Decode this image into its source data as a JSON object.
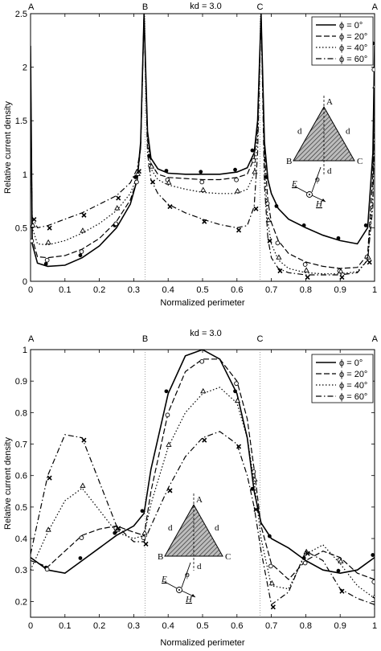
{
  "chart_data": [
    {
      "type": "line",
      "title": "kd = 3.0",
      "xlabel": "Normalized perimeter",
      "ylabel": "Relative current density",
      "xlim": [
        0,
        1
      ],
      "ylim": [
        0,
        2.5
      ],
      "xticks": [
        "0",
        "0.1",
        "0.2",
        "0.3",
        "0.4",
        "0.5",
        "0.6",
        "0.7",
        "0.8",
        "0.9",
        "1"
      ],
      "yticks": [
        "0",
        "0.5",
        "1",
        "1.5",
        "2",
        "2.5"
      ],
      "corner_labels": [
        {
          "text": "A",
          "x": 0
        },
        {
          "text": "B",
          "x": 0.333
        },
        {
          "text": "C",
          "x": 0.667
        },
        {
          "text": "A",
          "x": 1
        }
      ],
      "legend_position": "top-right",
      "inset": {
        "vertex_top": "A",
        "vertex_left": "B",
        "vertex_right": "C",
        "side_left": "d",
        "side_right": "d",
        "height": "d",
        "e_label": "E",
        "h_label": "H",
        "angle": "ϕ"
      },
      "series": [
        {
          "name": "ϕ = 0°",
          "dash": "solid",
          "marker": "dot",
          "x": [
            0,
            0.005,
            0.02,
            0.05,
            0.1,
            0.15,
            0.2,
            0.25,
            0.29,
            0.31,
            0.32,
            0.33,
            0.34,
            0.35,
            0.37,
            0.4,
            0.45,
            0.5,
            0.55,
            0.6,
            0.63,
            0.65,
            0.66,
            0.67,
            0.68,
            0.69,
            0.7,
            0.72,
            0.75,
            0.8,
            0.85,
            0.9,
            0.95,
            0.98,
            0.995,
            1
          ],
          "y": [
            2.2,
            0.35,
            0.17,
            0.14,
            0.15,
            0.22,
            0.33,
            0.5,
            0.72,
            0.95,
            1.3,
            2.5,
            1.4,
            1.15,
            1.05,
            1.01,
            1.0,
            1.0,
            1.0,
            1.02,
            1.06,
            1.2,
            1.5,
            2.5,
            1.3,
            0.95,
            0.82,
            0.68,
            0.58,
            0.5,
            0.43,
            0.38,
            0.35,
            0.5,
            1.2,
            2.2
          ]
        },
        {
          "name": "ϕ = 20°",
          "dash": "dashed",
          "marker": "circle",
          "x": [
            0,
            0.005,
            0.02,
            0.05,
            0.1,
            0.15,
            0.2,
            0.25,
            0.29,
            0.31,
            0.32,
            0.33,
            0.34,
            0.35,
            0.37,
            0.4,
            0.45,
            0.5,
            0.55,
            0.6,
            0.63,
            0.65,
            0.66,
            0.67,
            0.68,
            0.69,
            0.7,
            0.72,
            0.75,
            0.8,
            0.85,
            0.9,
            0.95,
            0.98,
            0.995,
            1
          ],
          "y": [
            2.0,
            0.4,
            0.23,
            0.22,
            0.24,
            0.3,
            0.4,
            0.56,
            0.76,
            0.95,
            1.25,
            2.5,
            1.35,
            1.1,
            1.0,
            0.97,
            0.96,
            0.95,
            0.95,
            0.97,
            1.0,
            1.15,
            1.45,
            2.5,
            1.2,
            0.75,
            0.55,
            0.38,
            0.26,
            0.18,
            0.14,
            0.12,
            0.13,
            0.25,
            1.0,
            2.0
          ]
        },
        {
          "name": "ϕ = 40°",
          "dash": "dotted",
          "marker": "triangle",
          "x": [
            0,
            0.005,
            0.02,
            0.05,
            0.1,
            0.15,
            0.2,
            0.25,
            0.29,
            0.31,
            0.32,
            0.33,
            0.34,
            0.35,
            0.37,
            0.4,
            0.45,
            0.5,
            0.55,
            0.6,
            0.63,
            0.65,
            0.66,
            0.67,
            0.68,
            0.69,
            0.7,
            0.72,
            0.75,
            0.8,
            0.85,
            0.9,
            0.95,
            0.98,
            0.995,
            1
          ],
          "y": [
            1.8,
            0.5,
            0.35,
            0.34,
            0.38,
            0.45,
            0.54,
            0.66,
            0.82,
            0.98,
            1.25,
            2.5,
            1.3,
            1.05,
            0.95,
            0.9,
            0.86,
            0.83,
            0.82,
            0.82,
            0.86,
            1.0,
            1.35,
            2.5,
            1.05,
            0.55,
            0.35,
            0.2,
            0.12,
            0.08,
            0.07,
            0.07,
            0.09,
            0.2,
            0.8,
            1.8
          ]
        },
        {
          "name": "ϕ = 60°",
          "dash": "dashdot",
          "marker": "x",
          "x": [
            0,
            0.005,
            0.02,
            0.05,
            0.1,
            0.15,
            0.2,
            0.25,
            0.29,
            0.31,
            0.32,
            0.33,
            0.34,
            0.35,
            0.37,
            0.4,
            0.45,
            0.5,
            0.55,
            0.6,
            0.63,
            0.65,
            0.66,
            0.67,
            0.68,
            0.69,
            0.7,
            0.72,
            0.75,
            0.8,
            0.85,
            0.9,
            0.95,
            0.98,
            0.995,
            1
          ],
          "y": [
            1.6,
            0.6,
            0.5,
            0.52,
            0.58,
            0.64,
            0.72,
            0.8,
            0.92,
            1.05,
            1.25,
            2.5,
            1.2,
            0.95,
            0.82,
            0.72,
            0.64,
            0.58,
            0.53,
            0.5,
            0.52,
            0.7,
            1.2,
            2.5,
            0.9,
            0.4,
            0.22,
            0.12,
            0.08,
            0.06,
            0.06,
            0.06,
            0.08,
            0.2,
            0.7,
            1.6
          ]
        }
      ]
    },
    {
      "type": "line",
      "title": "kd = 3.0",
      "xlabel": "Normalized perimeter",
      "ylabel": "Relative current density",
      "xlim": [
        0,
        1
      ],
      "ylim": [
        0.15,
        1
      ],
      "xticks": [
        "0",
        "0.1",
        "0.2",
        "0.3",
        "0.4",
        "0.5",
        "0.6",
        "0.7",
        "0.8",
        "0.9",
        "1"
      ],
      "yticks": [
        "0.2",
        "0.3",
        "0.4",
        "0.5",
        "0.6",
        "0.7",
        "0.8",
        "0.9",
        "1"
      ],
      "corner_labels": [
        {
          "text": "A",
          "x": 0
        },
        {
          "text": "B",
          "x": 0.333
        },
        {
          "text": "C",
          "x": 0.667
        },
        {
          "text": "A",
          "x": 1
        }
      ],
      "legend_position": "top-right",
      "inset": {
        "vertex_top": "A",
        "vertex_left": "B",
        "vertex_right": "C",
        "side_left": "d",
        "side_right": "d",
        "height": "d",
        "e_label": "E",
        "h_label": "H",
        "angle": "ϕ"
      },
      "series": [
        {
          "name": "ϕ = 0°",
          "dash": "solid",
          "marker": "dot",
          "x": [
            0,
            0.05,
            0.1,
            0.15,
            0.2,
            0.25,
            0.3,
            0.33,
            0.35,
            0.4,
            0.45,
            0.5,
            0.55,
            0.6,
            0.63,
            0.65,
            0.67,
            0.7,
            0.75,
            0.8,
            0.85,
            0.9,
            0.95,
            1
          ],
          "y": [
            0.34,
            0.3,
            0.29,
            0.33,
            0.37,
            0.41,
            0.44,
            0.48,
            0.62,
            0.86,
            0.98,
            1.0,
            0.97,
            0.86,
            0.72,
            0.55,
            0.45,
            0.4,
            0.37,
            0.33,
            0.3,
            0.29,
            0.3,
            0.34
          ]
        },
        {
          "name": "ϕ = 20°",
          "dash": "dashed",
          "marker": "circle",
          "x": [
            0,
            0.05,
            0.1,
            0.15,
            0.2,
            0.25,
            0.3,
            0.33,
            0.35,
            0.4,
            0.45,
            0.5,
            0.55,
            0.6,
            0.63,
            0.65,
            0.67,
            0.7,
            0.75,
            0.8,
            0.85,
            0.9,
            0.95,
            1
          ],
          "y": [
            0.33,
            0.31,
            0.36,
            0.41,
            0.43,
            0.44,
            0.42,
            0.41,
            0.55,
            0.8,
            0.93,
            0.97,
            0.97,
            0.9,
            0.78,
            0.62,
            0.44,
            0.32,
            0.27,
            0.33,
            0.36,
            0.34,
            0.29,
            0.27
          ]
        },
        {
          "name": "ϕ = 40°",
          "dash": "dotted",
          "marker": "triangle",
          "x": [
            0,
            0.05,
            0.1,
            0.15,
            0.2,
            0.25,
            0.3,
            0.33,
            0.35,
            0.4,
            0.45,
            0.5,
            0.55,
            0.6,
            0.63,
            0.65,
            0.67,
            0.7,
            0.75,
            0.8,
            0.85,
            0.9,
            0.95,
            1
          ],
          "y": [
            0.3,
            0.42,
            0.52,
            0.56,
            0.49,
            0.42,
            0.4,
            0.41,
            0.51,
            0.69,
            0.8,
            0.86,
            0.88,
            0.83,
            0.72,
            0.58,
            0.4,
            0.25,
            0.24,
            0.35,
            0.38,
            0.32,
            0.25,
            0.21
          ]
        },
        {
          "name": "ϕ = 60°",
          "dash": "dashdot",
          "marker": "x",
          "x": [
            0,
            0.05,
            0.1,
            0.15,
            0.2,
            0.25,
            0.3,
            0.33,
            0.35,
            0.4,
            0.45,
            0.5,
            0.55,
            0.6,
            0.63,
            0.65,
            0.67,
            0.7,
            0.75,
            0.8,
            0.85,
            0.9,
            0.95,
            1
          ],
          "y": [
            0.35,
            0.6,
            0.73,
            0.72,
            0.58,
            0.44,
            0.39,
            0.39,
            0.44,
            0.56,
            0.66,
            0.72,
            0.74,
            0.7,
            0.6,
            0.5,
            0.36,
            0.19,
            0.23,
            0.36,
            0.33,
            0.24,
            0.21,
            0.19
          ]
        }
      ]
    }
  ]
}
